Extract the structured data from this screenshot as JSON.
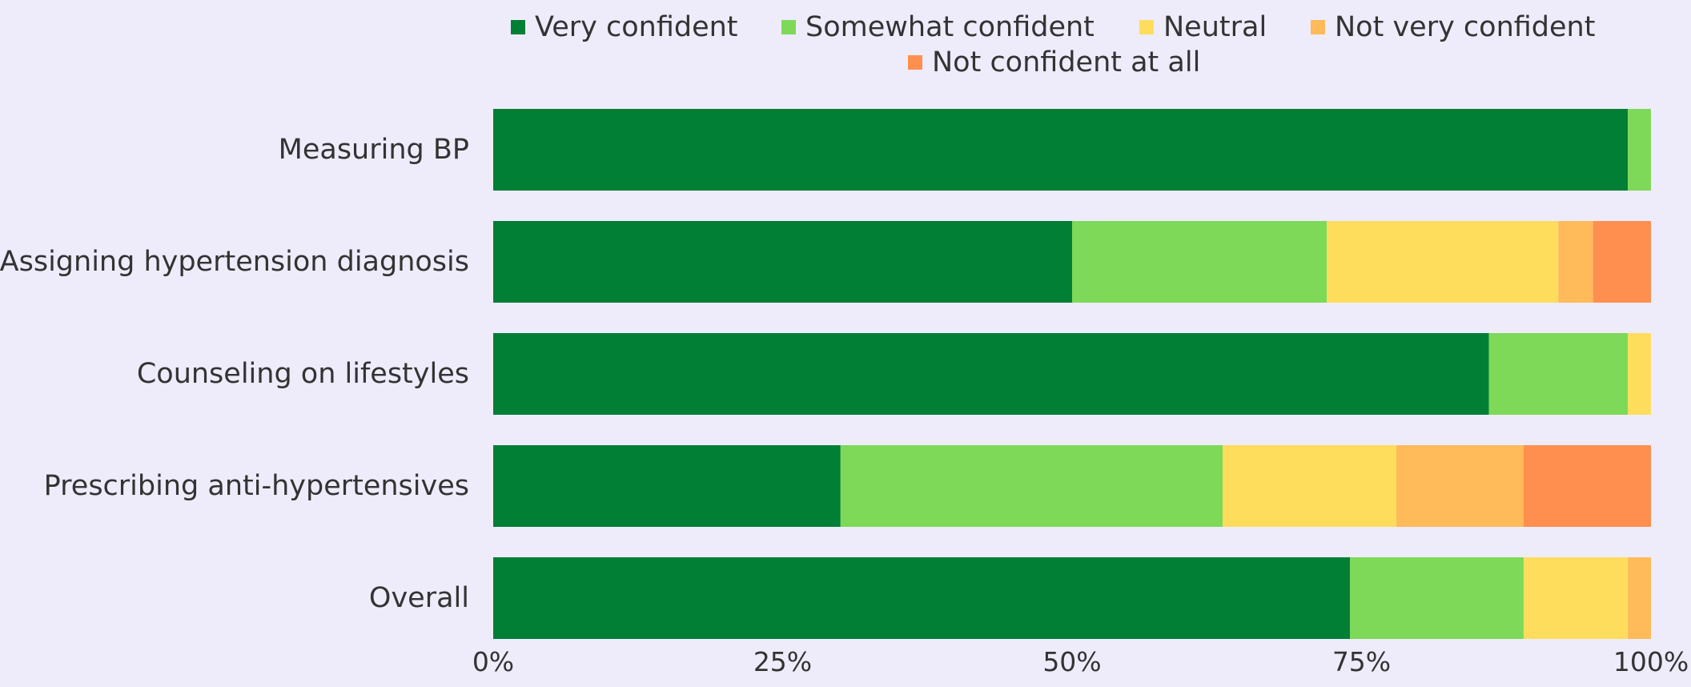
{
  "chart_data": {
    "type": "bar",
    "orientation": "horizontal",
    "stacked": true,
    "categories": [
      "Measuring BP",
      "Assigning hypertension diagnosis",
      "Counseling on lifestyles",
      "Prescribing anti-hypertensives",
      "Overall"
    ],
    "series": [
      {
        "name": "Very confident",
        "color": "#007f35",
        "values": [
          98,
          50,
          86,
          30,
          74
        ]
      },
      {
        "name": "Somewhat confident",
        "color": "#7dd957",
        "values": [
          2,
          22,
          12,
          33,
          15
        ]
      },
      {
        "name": "Neutral",
        "color": "#ffdd5c",
        "values": [
          0,
          20,
          2,
          15,
          9
        ]
      },
      {
        "name": "Not very confident",
        "color": "#ffba59",
        "values": [
          0,
          3,
          0,
          11,
          2
        ]
      },
      {
        "name": "Not confident at all",
        "color": "#ff8f4f",
        "values": [
          0,
          5,
          0,
          11,
          0
        ]
      }
    ],
    "x_ticks": [
      "0%",
      "25%",
      "50%",
      "75%",
      "100%"
    ],
    "xlim": [
      0,
      100
    ],
    "grid": false,
    "legend_position": "top"
  }
}
